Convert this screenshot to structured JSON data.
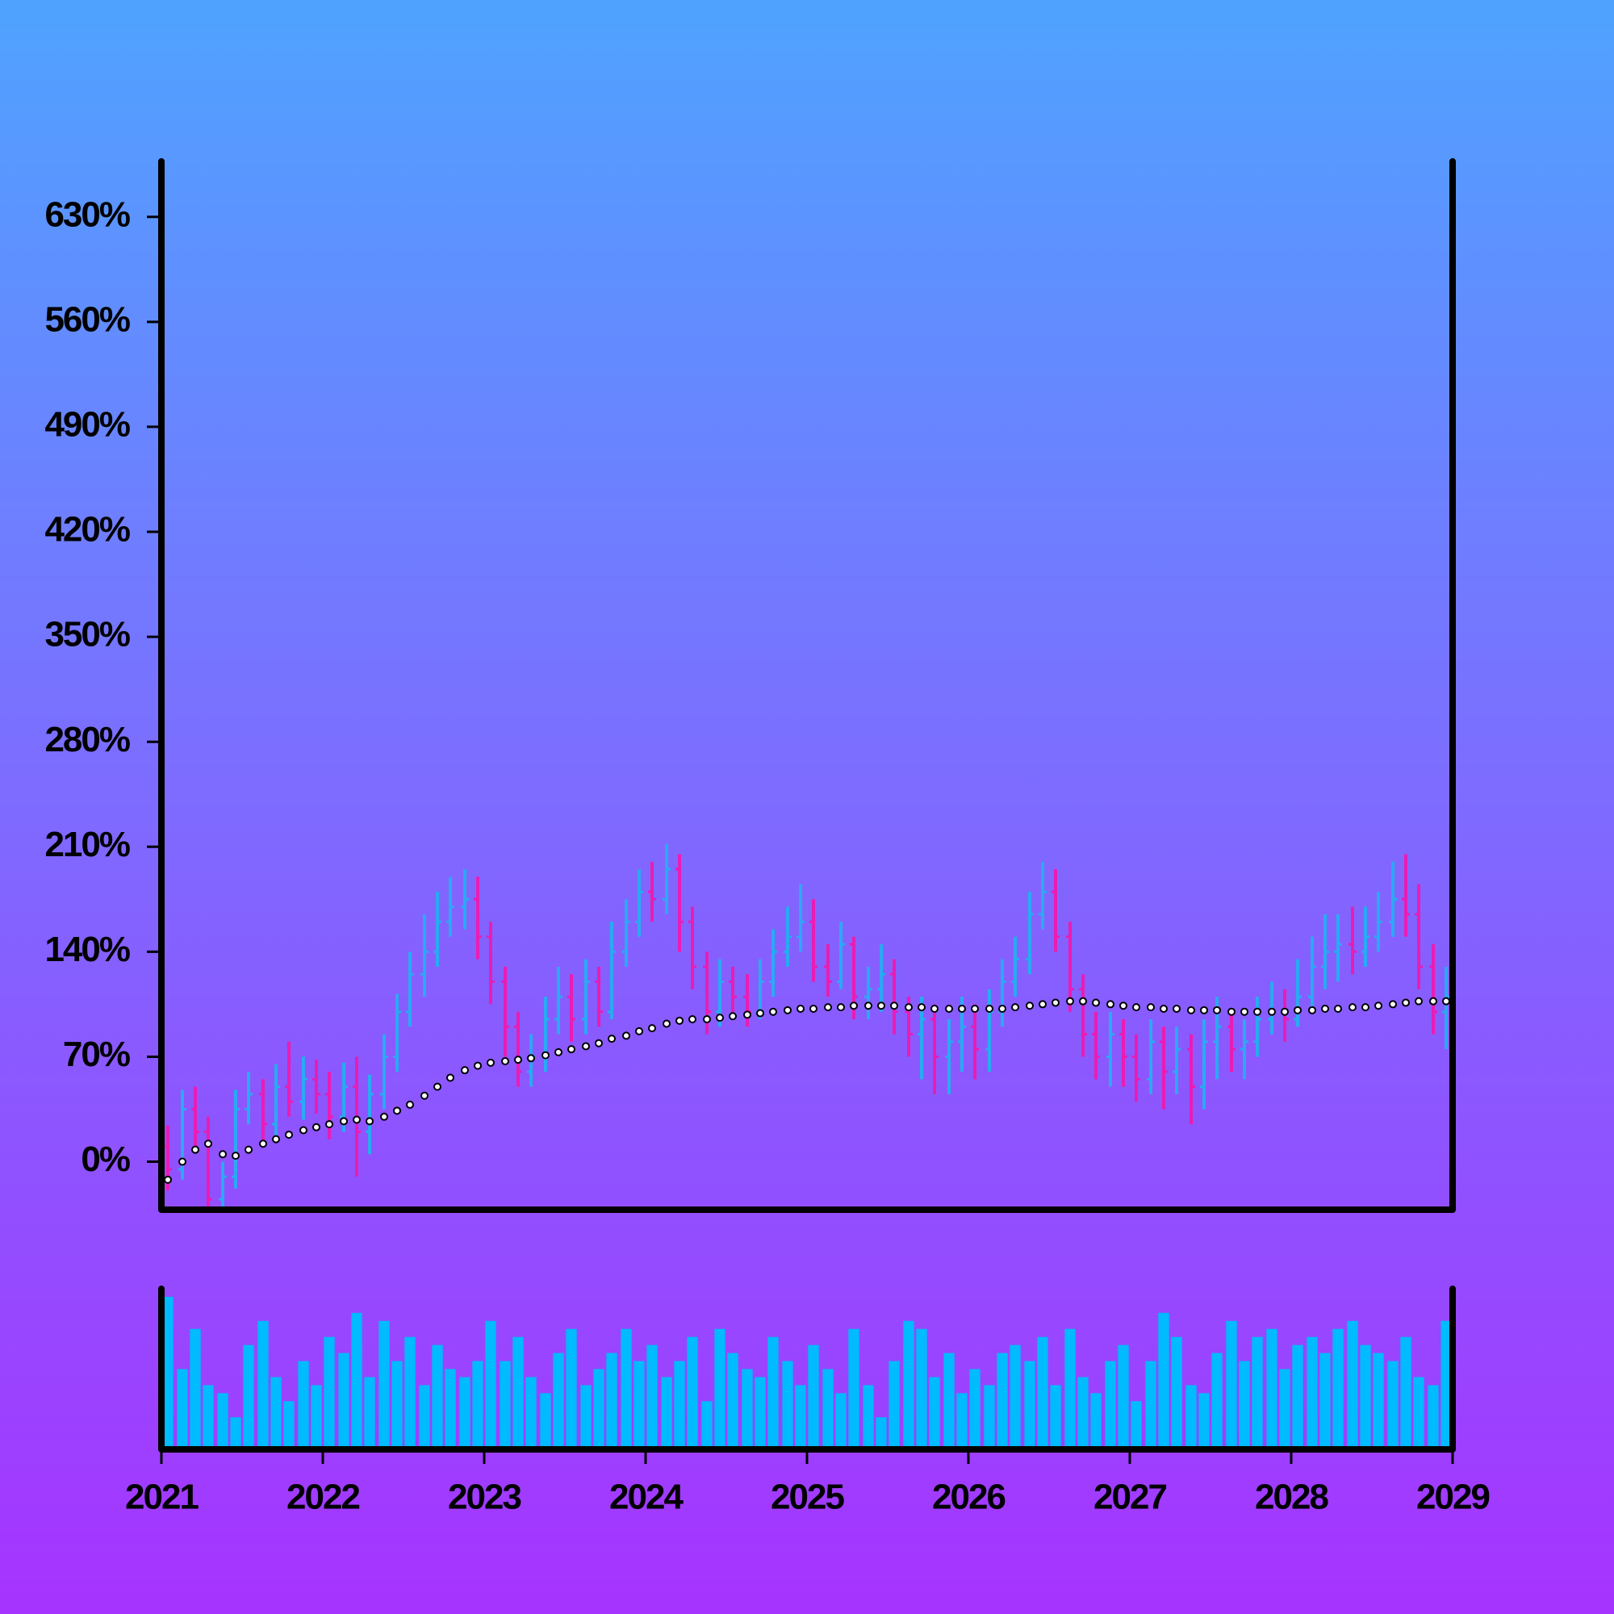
{
  "chart_data": {
    "type": "ohlc",
    "x": [
      2021.04,
      2021.13,
      2021.21,
      2021.29,
      2021.38,
      2021.46,
      2021.54,
      2021.63,
      2021.71,
      2021.79,
      2021.88,
      2021.96,
      2022.04,
      2022.13,
      2022.21,
      2022.29,
      2022.38,
      2022.46,
      2022.54,
      2022.63,
      2022.71,
      2022.79,
      2022.88,
      2022.96,
      2023.04,
      2023.13,
      2023.21,
      2023.29,
      2023.38,
      2023.46,
      2023.54,
      2023.63,
      2023.71,
      2023.79,
      2023.88,
      2023.96,
      2024.04,
      2024.13,
      2024.21,
      2024.29,
      2024.38,
      2024.46,
      2024.54,
      2024.63,
      2024.71,
      2024.79,
      2024.88,
      2024.96,
      2025.04,
      2025.13,
      2025.21,
      2025.29,
      2025.38,
      2025.46,
      2025.54,
      2025.63,
      2025.71,
      2025.79,
      2025.88,
      2025.96,
      2026.04,
      2026.13,
      2026.21,
      2026.29,
      2026.38,
      2026.46,
      2026.54,
      2026.63,
      2026.71,
      2026.79,
      2026.88,
      2026.96,
      2027.04,
      2027.13,
      2027.21,
      2027.29,
      2027.38,
      2027.46,
      2027.54,
      2027.63,
      2027.71,
      2027.79,
      2027.88,
      2027.96,
      2028.04,
      2028.13,
      2028.21,
      2028.29,
      2028.38,
      2028.46,
      2028.54,
      2028.63,
      2028.71,
      2028.79,
      2028.88,
      2028.96
    ],
    "open": [
      10,
      -5,
      35,
      20,
      -25,
      -10,
      35,
      45,
      25,
      50,
      40,
      55,
      45,
      30,
      50,
      20,
      45,
      70,
      100,
      125,
      140,
      160,
      170,
      175,
      150,
      120,
      90,
      60,
      70,
      95,
      110,
      95,
      120,
      100,
      140,
      160,
      180,
      175,
      195,
      160,
      130,
      100,
      120,
      110,
      100,
      120,
      140,
      150,
      160,
      130,
      120,
      145,
      110,
      115,
      125,
      100,
      85,
      95,
      70,
      80,
      90,
      75,
      100,
      120,
      135,
      165,
      180,
      150,
      115,
      85,
      70,
      85,
      70,
      55,
      80,
      60,
      75,
      50,
      80,
      90,
      75,
      80,
      95,
      100,
      95,
      110,
      130,
      140,
      145,
      140,
      150,
      160,
      175,
      165,
      130,
      100
    ],
    "high": [
      24,
      48,
      50,
      30,
      0,
      48,
      60,
      55,
      65,
      80,
      70,
      68,
      60,
      66,
      70,
      58,
      85,
      112,
      140,
      165,
      180,
      190,
      195,
      190,
      160,
      130,
      100,
      85,
      110,
      130,
      125,
      135,
      130,
      160,
      175,
      195,
      200,
      212,
      205,
      170,
      140,
      135,
      130,
      125,
      135,
      155,
      170,
      185,
      175,
      145,
      160,
      150,
      130,
      145,
      135,
      110,
      110,
      105,
      95,
      110,
      105,
      115,
      135,
      150,
      180,
      200,
      195,
      160,
      125,
      100,
      100,
      95,
      85,
      95,
      90,
      90,
      85,
      95,
      110,
      100,
      95,
      110,
      120,
      115,
      135,
      150,
      165,
      165,
      170,
      170,
      180,
      200,
      205,
      185,
      145,
      130
    ],
    "low": [
      -19,
      -12,
      8,
      -40,
      -40,
      -18,
      25,
      12,
      15,
      30,
      28,
      32,
      15,
      20,
      -10,
      5,
      35,
      60,
      90,
      110,
      130,
      150,
      155,
      135,
      105,
      70,
      50,
      50,
      60,
      85,
      80,
      85,
      90,
      95,
      130,
      150,
      160,
      165,
      140,
      115,
      85,
      90,
      95,
      90,
      95,
      110,
      130,
      140,
      120,
      110,
      115,
      95,
      95,
      100,
      85,
      70,
      55,
      45,
      45,
      60,
      55,
      60,
      90,
      110,
      125,
      155,
      140,
      100,
      70,
      55,
      50,
      50,
      40,
      45,
      35,
      45,
      25,
      35,
      55,
      60,
      55,
      70,
      85,
      80,
      90,
      100,
      115,
      120,
      125,
      130,
      140,
      150,
      150,
      115,
      85,
      75
    ],
    "close": [
      -5,
      35,
      20,
      -25,
      -10,
      35,
      45,
      25,
      50,
      40,
      55,
      45,
      30,
      50,
      20,
      45,
      70,
      100,
      125,
      140,
      160,
      170,
      175,
      150,
      120,
      90,
      60,
      70,
      95,
      110,
      95,
      120,
      100,
      140,
      160,
      180,
      175,
      195,
      160,
      130,
      100,
      120,
      110,
      100,
      120,
      140,
      150,
      160,
      130,
      120,
      145,
      110,
      115,
      125,
      100,
      85,
      95,
      70,
      80,
      90,
      75,
      100,
      120,
      135,
      165,
      180,
      150,
      115,
      85,
      70,
      85,
      70,
      55,
      80,
      60,
      75,
      50,
      80,
      90,
      75,
      80,
      95,
      100,
      95,
      110,
      130,
      140,
      145,
      140,
      150,
      160,
      175,
      165,
      130,
      100,
      110
    ],
    "up_color": "#29aaf2",
    "down_color": "#ea1cb4",
    "ma": {
      "color": "#ffffff",
      "values": [
        -12,
        0,
        8,
        12,
        5,
        4,
        8,
        12,
        15,
        18,
        21,
        23,
        25,
        27,
        28,
        27,
        30,
        34,
        38,
        44,
        50,
        56,
        61,
        64,
        66,
        67,
        68,
        69,
        71,
        73,
        75,
        77,
        79,
        82,
        84,
        87,
        89,
        92,
        94,
        95,
        95,
        96,
        97,
        98,
        99,
        100,
        101,
        102,
        102,
        103,
        103,
        104,
        104,
        104,
        104,
        103,
        103,
        102,
        102,
        102,
        102,
        102,
        102,
        103,
        104,
        105,
        106,
        107,
        107,
        106,
        105,
        104,
        103,
        103,
        102,
        102,
        101,
        101,
        101,
        100,
        100,
        100,
        100,
        100,
        101,
        101,
        102,
        102,
        103,
        103,
        104,
        105,
        106,
        107,
        107,
        107
      ]
    },
    "volume": {
      "color": "#00bbff",
      "ylim": [
        0,
        100
      ],
      "values": [
        95,
        50,
        75,
        40,
        35,
        20,
        65,
        80,
        45,
        30,
        55,
        40,
        70,
        60,
        85,
        45,
        80,
        55,
        70,
        40,
        65,
        50,
        45,
        55,
        80,
        55,
        70,
        45,
        35,
        60,
        75,
        40,
        50,
        60,
        75,
        55,
        65,
        45,
        55,
        70,
        30,
        75,
        60,
        50,
        45,
        70,
        55,
        40,
        65,
        50,
        35,
        75,
        40,
        20,
        55,
        80,
        75,
        45,
        60,
        35,
        50,
        40,
        60,
        65,
        55,
        70,
        40,
        75,
        45,
        35,
        55,
        65,
        30,
        55,
        85,
        70,
        40,
        35,
        60,
        80,
        55,
        70,
        75,
        50,
        65,
        70,
        60,
        75,
        80,
        65,
        60,
        55,
        70,
        45,
        40,
        80
      ]
    },
    "xlim": [
      2021,
      2029
    ],
    "xticks": [
      2021,
      2022,
      2023,
      2024,
      2025,
      2026,
      2027,
      2028,
      2029
    ],
    "ylim": [
      -32,
      667
    ],
    "yticks": [
      {
        "value": 0,
        "label": "0%"
      },
      {
        "value": 70,
        "label": "70%"
      },
      {
        "value": 140,
        "label": "140%"
      },
      {
        "value": 210,
        "label": "210%"
      },
      {
        "value": 280,
        "label": "280%"
      },
      {
        "value": 350,
        "label": "350%"
      },
      {
        "value": 420,
        "label": "420%"
      },
      {
        "value": 490,
        "label": "490%"
      },
      {
        "value": 560,
        "label": "560%"
      },
      {
        "value": 630,
        "label": "630%"
      }
    ]
  }
}
